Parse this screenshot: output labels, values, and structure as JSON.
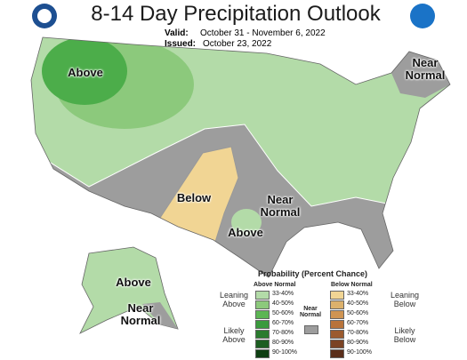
{
  "header": {
    "title": "8-14 Day Precipitation Outlook",
    "valid_label": "Valid:",
    "valid": "October 31 - November 6, 2022",
    "issued_label": "Issued:",
    "issued": "October 23, 2022"
  },
  "map_labels": [
    "Above",
    "Below",
    "Near Normal",
    "Above",
    "Near Normal",
    "Above",
    "Near Normal"
  ],
  "legend": {
    "title": "Probability (Percent Chance)",
    "above_heading": "Above Normal",
    "below_heading": "Below Normal",
    "near_heading": "Near Normal",
    "near_color": "#9d9d9d",
    "above": [
      {
        "label": "33-40%",
        "color": "#b3dba8"
      },
      {
        "label": "40-50%",
        "color": "#8cc97c"
      },
      {
        "label": "50-60%",
        "color": "#5cb553"
      },
      {
        "label": "60-70%",
        "color": "#3a9a3d"
      },
      {
        "label": "70-80%",
        "color": "#2a7b2e"
      },
      {
        "label": "80-90%",
        "color": "#1c5d21"
      },
      {
        "label": "90-100%",
        "color": "#0e3f12"
      }
    ],
    "below": [
      {
        "label": "33-40%",
        "color": "#f1d594"
      },
      {
        "label": "40-50%",
        "color": "#dcb16c"
      },
      {
        "label": "50-60%",
        "color": "#cf9452"
      },
      {
        "label": "60-70%",
        "color": "#b8733a"
      },
      {
        "label": "70-80%",
        "color": "#9b5a2e"
      },
      {
        "label": "80-90%",
        "color": "#7b4324"
      },
      {
        "label": "90-100%",
        "color": "#5a2e1a"
      }
    ],
    "side_labels": [
      "Leaning Above",
      "Likely Above",
      "Leaning Below",
      "Likely Below"
    ]
  }
}
